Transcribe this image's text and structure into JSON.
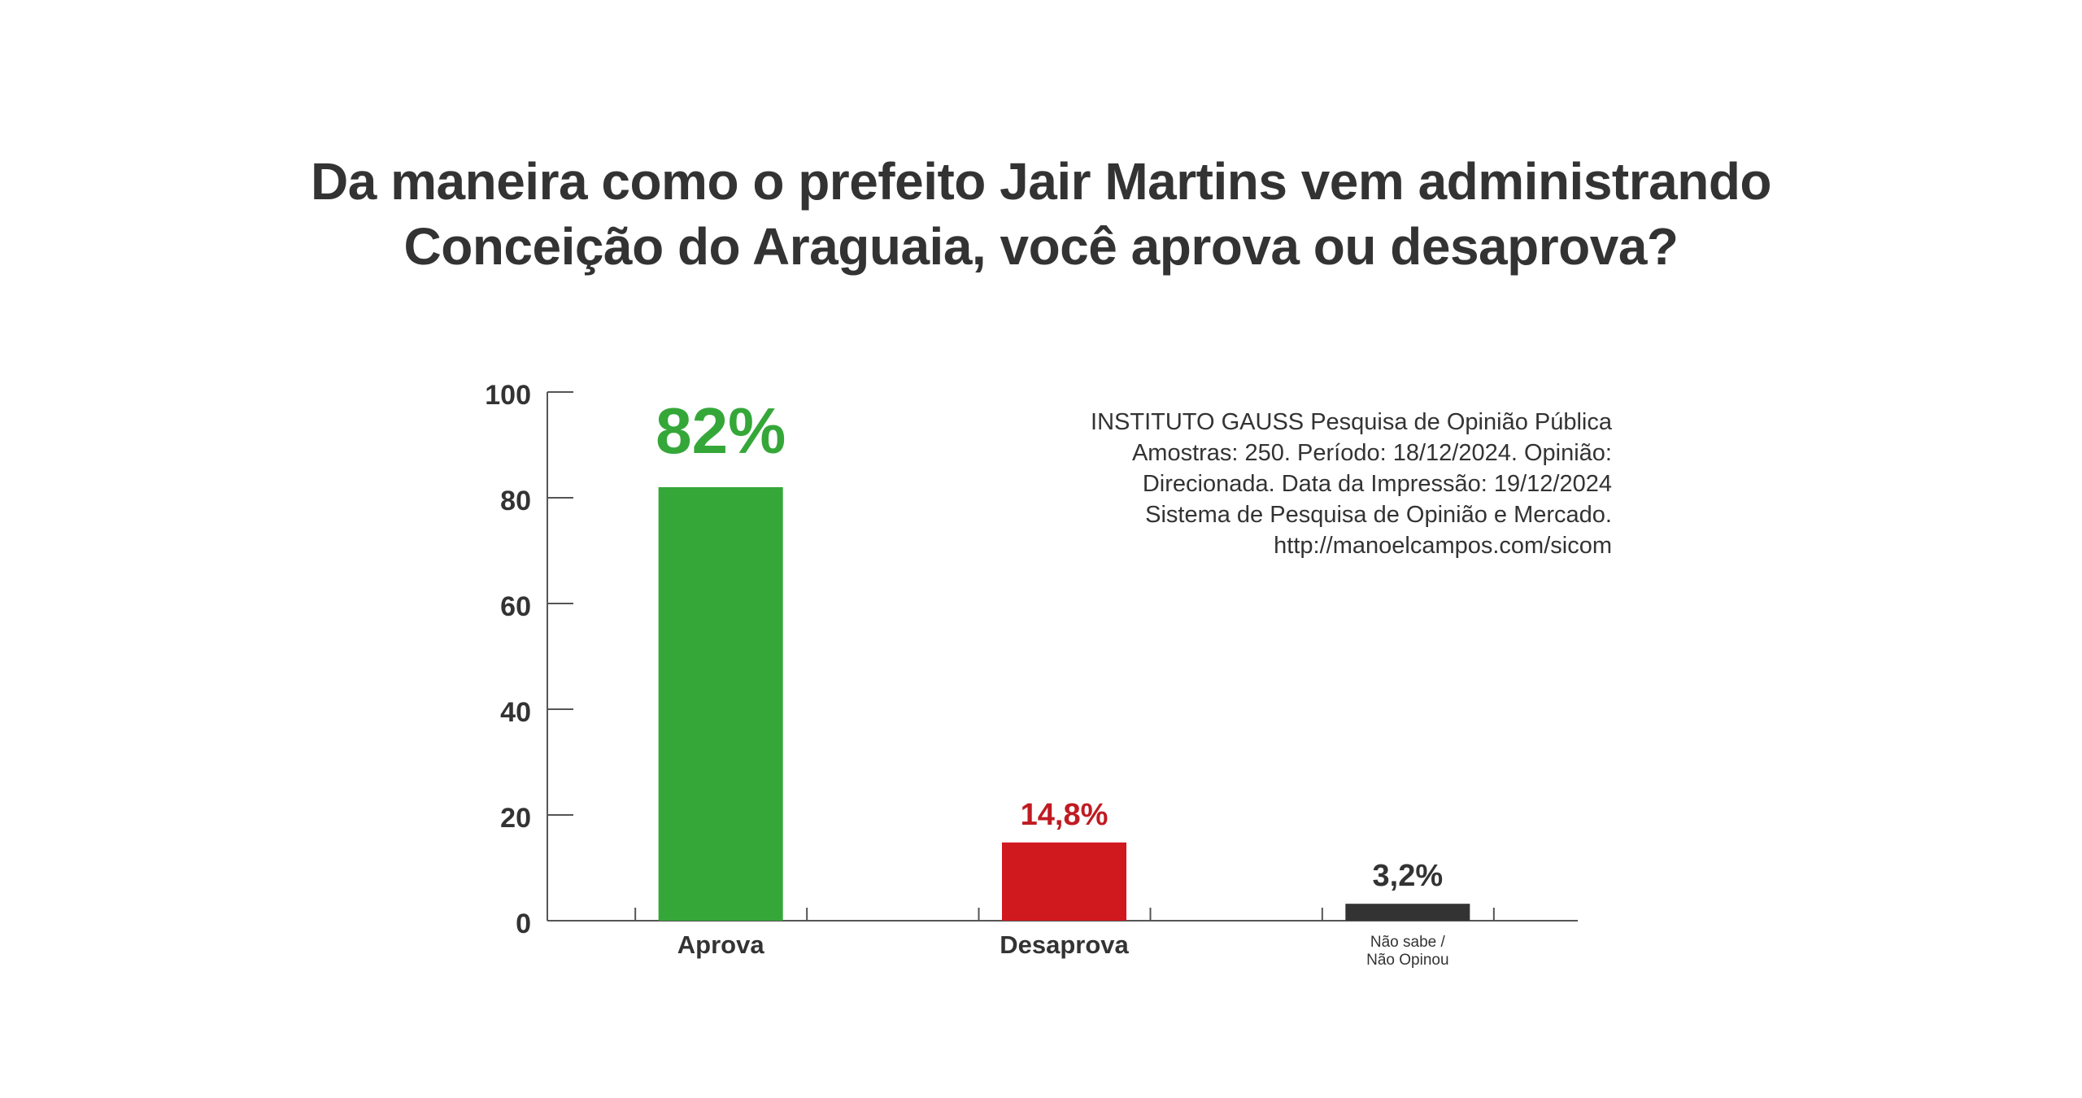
{
  "chart_data": {
    "type": "bar",
    "title": [
      "Da maneira como o prefeito Jair Martins vem administrando",
      "Conceição do Araguaia, você aprova ou desaprova?"
    ],
    "categories": [
      [
        "Aprova"
      ],
      [
        "Desaprova"
      ],
      [
        "Não sabe /",
        "Não Opinou"
      ]
    ],
    "values": [
      82,
      14.8,
      3.2
    ],
    "value_labels": [
      "82%",
      "14,8%",
      "3,2%"
    ],
    "colors": [
      "#35a739",
      "#d0181f",
      "#333333"
    ],
    "label_colors": [
      "#35a739",
      "#c01b22",
      "#333333"
    ],
    "ylim": [
      0,
      100
    ],
    "yticks": [
      "0",
      "20",
      "40",
      "60",
      "80",
      "100"
    ],
    "xlabel": "",
    "ylabel": "",
    "grid": false,
    "source_note": [
      "INSTITUTO GAUSS Pesquisa de Opinião Pública",
      "Amostras: 250. Período: 18/12/2024. Opinião:",
      "Direcionada. Data da Impressão: 19/12/2024",
      "Sistema de Pesquisa de Opinião e Mercado.",
      "http://manoelcampos.com/sicom"
    ]
  }
}
